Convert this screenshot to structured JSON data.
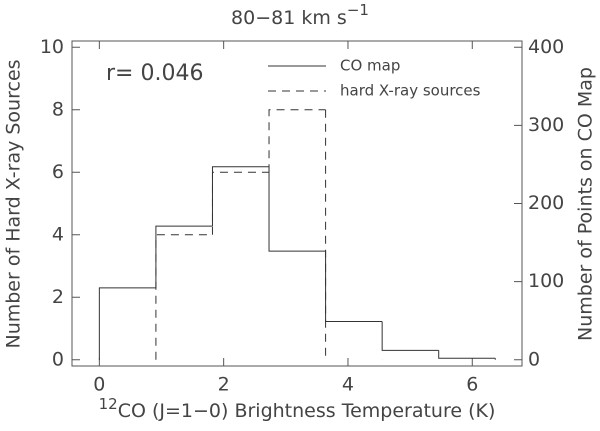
{
  "chart_data": {
    "type": "histogram",
    "title": "80−81 km s",
    "title_sup": "−1",
    "xlabel_sup": "12",
    "xlabel": "CO (J=1−0) Brightness Temperature (K)",
    "ylabel": "Number of Hard X-ray Sources",
    "y2label": "Number of Points on CO Map",
    "annotation": "r= 0.046",
    "bins": [
      0,
      0.91,
      1.82,
      2.73,
      3.64,
      4.55,
      5.46,
      6.37
    ],
    "series": [
      {
        "name": "CO map",
        "color": "#333333",
        "dash": "none",
        "axis": "y2",
        "values": [
          92,
          171,
          247,
          139,
          49,
          12,
          2
        ]
      },
      {
        "name": "hard X-ray sources",
        "color": "#333333",
        "dash": "8 6",
        "values": [
          0,
          4,
          6,
          8,
          0,
          0,
          0
        ]
      }
    ],
    "xlim": [
      -0.44,
      6.8
    ],
    "xticks": [
      0,
      2,
      4,
      6
    ],
    "ylim": [
      -0.2,
      10.2
    ],
    "yticks": [
      0,
      2,
      4,
      6,
      8,
      10
    ],
    "y2lim": [
      -8,
      408
    ],
    "y2ticks": [
      0,
      100,
      200,
      300,
      400
    ],
    "legend": "upper right"
  }
}
